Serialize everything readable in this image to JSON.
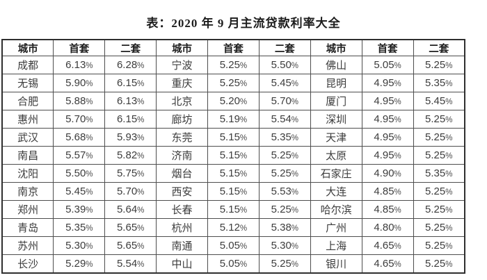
{
  "title": "表：2020 年 9 月主流贷款利率大全",
  "table": {
    "headers": [
      "城市",
      "首套",
      "二套",
      "城市",
      "首套",
      "二套",
      "城市",
      "首套",
      "二套"
    ],
    "rows": [
      [
        "成都",
        "6.13%",
        "6.28%",
        "宁波",
        "5.25%",
        "5.50%",
        "佛山",
        "5.05%",
        "5.25%"
      ],
      [
        "无锡",
        "5.90%",
        "6.15%",
        "重庆",
        "5.25%",
        "5.45%",
        "昆明",
        "4.95%",
        "5.35%"
      ],
      [
        "合肥",
        "5.88%",
        "6.13%",
        "北京",
        "5.20%",
        "5.70%",
        "厦门",
        "4.95%",
        "5.45%"
      ],
      [
        "惠州",
        "5.70%",
        "6.15%",
        "廊坊",
        "5.19%",
        "5.54%",
        "深圳",
        "4.95%",
        "5.25%"
      ],
      [
        "武汉",
        "5.68%",
        "5.93%",
        "东莞",
        "5.15%",
        "5.35%",
        "天津",
        "4.95%",
        "5.25%"
      ],
      [
        "南昌",
        "5.57%",
        "5.82%",
        "济南",
        "5.15%",
        "5.25%",
        "太原",
        "4.95%",
        "5.25%"
      ],
      [
        "沈阳",
        "5.50%",
        "5.75%",
        "烟台",
        "5.15%",
        "5.25%",
        "石家庄",
        "4.90%",
        "5.35%"
      ],
      [
        "南京",
        "5.45%",
        "5.70%",
        "西安",
        "5.15%",
        "5.53%",
        "大连",
        "4.85%",
        "5.25%"
      ],
      [
        "郑州",
        "5.39%",
        "5.64%",
        "长春",
        "5.15%",
        "5.25%",
        "哈尔滨",
        "4.85%",
        "5.25%"
      ],
      [
        "青岛",
        "5.35%",
        "5.65%",
        "杭州",
        "5.12%",
        "5.38%",
        "广州",
        "4.80%",
        "5.25%"
      ],
      [
        "苏州",
        "5.30%",
        "5.65%",
        "南通",
        "5.05%",
        "5.30%",
        "上海",
        "4.65%",
        "5.25%"
      ],
      [
        "长沙",
        "5.29%",
        "5.54%",
        "中山",
        "5.05%",
        "5.25%",
        "银川",
        "4.65%",
        "5.25%"
      ]
    ]
  },
  "chart_data": {
    "type": "table",
    "title": "表：2020 年 9 月主流贷款利率大全",
    "columns": [
      "城市",
      "首套",
      "二套"
    ],
    "rows": [
      {
        "城市": "成都",
        "首套": "6.13%",
        "二套": "6.28%"
      },
      {
        "城市": "无锡",
        "首套": "5.90%",
        "二套": "6.15%"
      },
      {
        "城市": "合肥",
        "首套": "5.88%",
        "二套": "6.13%"
      },
      {
        "城市": "惠州",
        "首套": "5.70%",
        "二套": "6.15%"
      },
      {
        "城市": "武汉",
        "首套": "5.68%",
        "二套": "5.93%"
      },
      {
        "城市": "南昌",
        "首套": "5.57%",
        "二套": "5.82%"
      },
      {
        "城市": "沈阳",
        "首套": "5.50%",
        "二套": "5.75%"
      },
      {
        "城市": "南京",
        "首套": "5.45%",
        "二套": "5.70%"
      },
      {
        "城市": "郑州",
        "首套": "5.39%",
        "二套": "5.64%"
      },
      {
        "城市": "青岛",
        "首套": "5.35%",
        "二套": "5.65%"
      },
      {
        "城市": "苏州",
        "首套": "5.30%",
        "二套": "5.65%"
      },
      {
        "城市": "长沙",
        "首套": "5.29%",
        "二套": "5.54%"
      },
      {
        "城市": "宁波",
        "首套": "5.25%",
        "二套": "5.50%"
      },
      {
        "城市": "重庆",
        "首套": "5.25%",
        "二套": "5.45%"
      },
      {
        "城市": "北京",
        "首套": "5.20%",
        "二套": "5.70%"
      },
      {
        "城市": "廊坊",
        "首套": "5.19%",
        "二套": "5.54%"
      },
      {
        "城市": "东莞",
        "首套": "5.15%",
        "二套": "5.35%"
      },
      {
        "城市": "济南",
        "首套": "5.15%",
        "二套": "5.25%"
      },
      {
        "城市": "烟台",
        "首套": "5.15%",
        "二套": "5.25%"
      },
      {
        "城市": "西安",
        "首套": "5.15%",
        "二套": "5.53%"
      },
      {
        "城市": "长春",
        "首套": "5.15%",
        "二套": "5.25%"
      },
      {
        "城市": "杭州",
        "首套": "5.12%",
        "二套": "5.38%"
      },
      {
        "城市": "南通",
        "首套": "5.05%",
        "二套": "5.30%"
      },
      {
        "城市": "中山",
        "首套": "5.05%",
        "二套": "5.25%"
      },
      {
        "城市": "佛山",
        "首套": "5.05%",
        "二套": "5.25%"
      },
      {
        "城市": "昆明",
        "首套": "4.95%",
        "二套": "5.35%"
      },
      {
        "城市": "厦门",
        "首套": "4.95%",
        "二套": "5.45%"
      },
      {
        "城市": "深圳",
        "首套": "4.95%",
        "二套": "5.25%"
      },
      {
        "城市": "天津",
        "首套": "4.95%",
        "二套": "5.25%"
      },
      {
        "城市": "太原",
        "首套": "4.95%",
        "二套": "5.25%"
      },
      {
        "城市": "石家庄",
        "首套": "4.90%",
        "二套": "5.35%"
      },
      {
        "城市": "大连",
        "首套": "4.85%",
        "二套": "5.25%"
      },
      {
        "城市": "哈尔滨",
        "首套": "4.85%",
        "二套": "5.25%"
      },
      {
        "城市": "广州",
        "首套": "4.80%",
        "二套": "5.25%"
      },
      {
        "城市": "上海",
        "首套": "4.65%",
        "二套": "5.25%"
      },
      {
        "城市": "银川",
        "首套": "4.65%",
        "二套": "5.25%"
      }
    ],
    "layout": {
      "column_groups": 3,
      "rows_per_group": 12,
      "sorted_by": "首套 descending"
    },
    "text_color": "#3c3c3c",
    "border_color": "#4d4d4d"
  }
}
